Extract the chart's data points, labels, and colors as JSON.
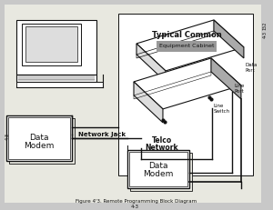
{
  "bg_color": "#c8c8c8",
  "page_color": "#e8e8e0",
  "white": "#ffffff",
  "black": "#111111",
  "mid_gray": "#aaaaaa",
  "light_gray": "#dddddd",
  "dark_gray": "#666666",
  "title": "Figure 4'3. Remote Programming Block Diagram",
  "typical_common_label": "Typical Common",
  "typical_common_sub": "Equipment Cabinet",
  "data_modem_left_1": "Data",
  "data_modem_left_2": "Modem",
  "network_jack_label": "Network Jack",
  "telco_network_1": "Telco",
  "telco_network_2": "Network",
  "data_modem_bottom_1": "Data",
  "data_modem_bottom_2": "Modem",
  "data_port_1": "Data",
  "data_port_2": "Port",
  "line_port_1": "Line",
  "line_port_2": "Port",
  "line_switch_1": "Line",
  "line_switch_2": "Switch",
  "page_num_top": "152",
  "page_num_right": "4-3",
  "fig_bottom": "4-3"
}
